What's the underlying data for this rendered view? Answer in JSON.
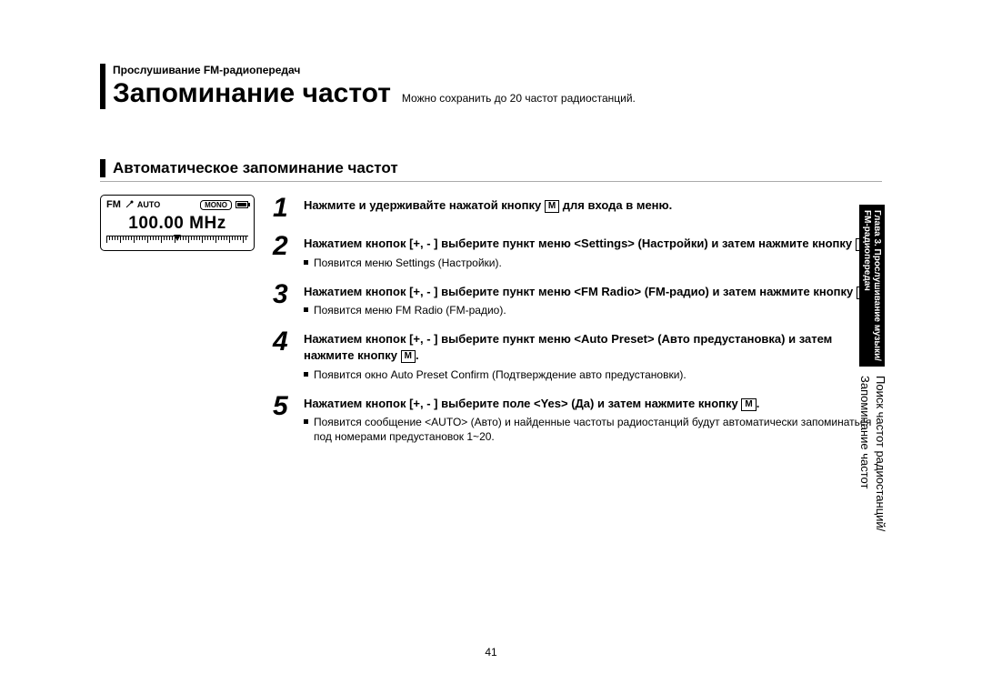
{
  "header": {
    "breadcrumb": "Прослушивание FM-радиопередач",
    "title": "Запоминание частот",
    "subtitle": "Можно сохранить до 20 частот радиостанций."
  },
  "section": {
    "title": "Автоматическое запоминание частот"
  },
  "radio": {
    "band": "FM",
    "auto": "AUTO",
    "mono": "MONO",
    "freq": "100.00 MHz"
  },
  "m_label": "M",
  "steps": [
    {
      "num": "1",
      "heading_a": "Нажмите и удерживайте нажатой кнопку ",
      "heading_b": " для входа в меню.",
      "notes": []
    },
    {
      "num": "2",
      "heading_a": "Нажатием кнопок [+, - ] выберите пункт меню <Settings> (Настройки) и затем нажмите кнопку ",
      "heading_b": ".",
      "notes": [
        "Появится меню Settings (Настройки)."
      ]
    },
    {
      "num": "3",
      "heading_a": "Нажатием кнопок [+, - ] выберите пункт меню <FM Radio> (FM-радио) и затем нажмите кнопку ",
      "heading_b": ".",
      "notes": [
        "Появится меню FM Radio (FM-радио)."
      ]
    },
    {
      "num": "4",
      "heading_a": "Нажатием кнопок [+, - ] выберите пункт меню <Auto Preset> (Авто предустановка) и затем нажмите кнопку ",
      "heading_b": ".",
      "notes": [
        "Появится окно Auto Preset Confirm (Подтверждение авто предустановки)."
      ]
    },
    {
      "num": "5",
      "heading_a": "Нажатием кнопок [+, - ] выберите поле <Yes> (Да) и затем нажмите кнопку ",
      "heading_b": ".",
      "notes": [
        "Появится сообщение <AUTO> (Авто) и найденные частоты радиостанций будут автоматически запоминаться под номерами предустановок 1~20."
      ]
    }
  ],
  "sidebar": {
    "chapter_a": "Глава 3. Прослушивание музыки/",
    "chapter_b": "FM-радиопередач",
    "topic_a": "Поиск частот радиостанций/",
    "topic_b": "Запоминание частот"
  },
  "page_number": "41"
}
